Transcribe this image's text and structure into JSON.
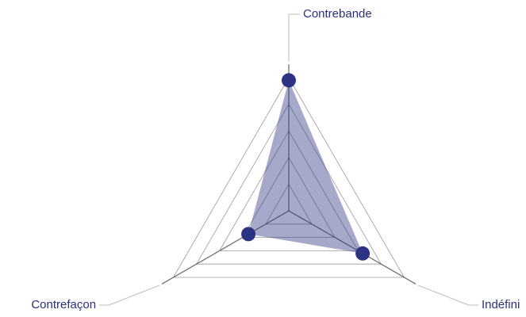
{
  "chart_data": {
    "type": "radar",
    "categories": [
      "Contrebande",
      "Indéfini",
      "Contrefaçon"
    ],
    "series": [
      {
        "color": "#2e3282",
        "values": [
          98,
          64,
          35
        ]
      }
    ],
    "rlim": [
      0,
      100
    ],
    "rticks": [
      20,
      40,
      60,
      80,
      100
    ],
    "grid": true
  }
}
